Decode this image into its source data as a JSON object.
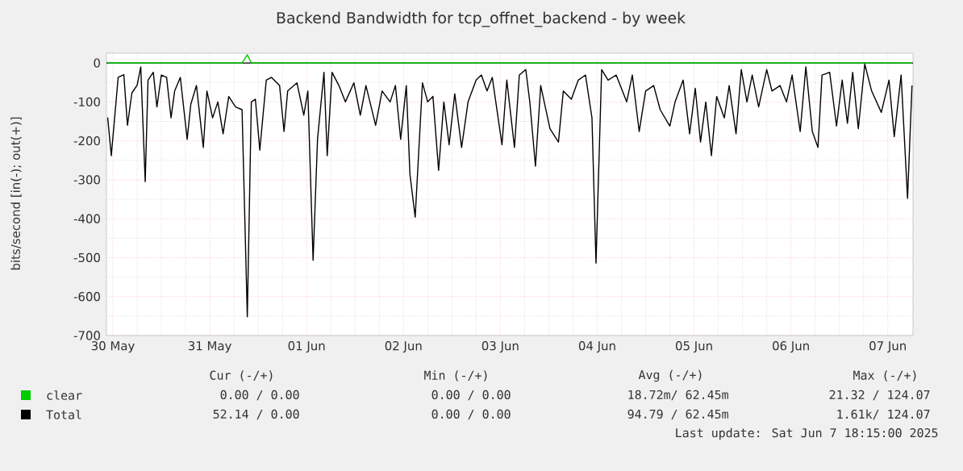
{
  "chart_data": {
    "type": "line",
    "title": "Backend Bandwidth for tcp_offnet_backend - by week",
    "ylabel": "bits/second [in(-); out(+)]",
    "xlim": [
      "2025-05-30T10:24",
      "2025-06-07T18:15"
    ],
    "ylim": [
      -700,
      25
    ],
    "xticks": [
      {
        "value": "2025-05-30T12:00",
        "label": "30 May"
      },
      {
        "value": "2025-05-31T12:00",
        "label": "31 May"
      },
      {
        "value": "2025-06-01T12:00",
        "label": "01 Jun"
      },
      {
        "value": "2025-06-02T12:00",
        "label": "02 Jun"
      },
      {
        "value": "2025-06-03T12:00",
        "label": "03 Jun"
      },
      {
        "value": "2025-06-04T12:00",
        "label": "04 Jun"
      },
      {
        "value": "2025-06-05T12:00",
        "label": "05 Jun"
      },
      {
        "value": "2025-06-06T12:00",
        "label": "06 Jun"
      },
      {
        "value": "2025-06-07T12:00",
        "label": "07 Jun"
      }
    ],
    "yticks": [
      -700,
      -600,
      -500,
      -400,
      -300,
      -200,
      -100,
      0
    ],
    "grid": true,
    "legend": "bottom",
    "ref_lines": [
      {
        "axis": "y",
        "value": 0,
        "color": "#000000"
      }
    ],
    "series": [
      {
        "name": "clear",
        "color": "#00cc00",
        "x": [
          "2025-05-30T10:42",
          "2025-05-31T20:00",
          "2025-05-31T21:18",
          "2025-05-31T22:18",
          "2025-06-07T18:00"
        ],
        "values": [
          0,
          0,
          21,
          0,
          0
        ]
      },
      {
        "name": "Total",
        "color": "#000000",
        "x": [
          "2025-05-30T10:42",
          "2025-05-30T11:36",
          "2025-05-30T13:18",
          "2025-05-30T14:42",
          "2025-05-30T15:36",
          "2025-05-30T16:42",
          "2025-05-30T18:00",
          "2025-05-30T18:54",
          "2025-05-30T20:00",
          "2025-05-30T20:42",
          "2025-05-30T22:00",
          "2025-05-30T22:54",
          "2025-05-31T00:00",
          "2025-05-31T01:18",
          "2025-05-31T02:24",
          "2025-05-31T03:18",
          "2025-05-31T04:42",
          "2025-05-31T06:24",
          "2025-05-31T07:18",
          "2025-05-31T08:42",
          "2025-05-31T10:24",
          "2025-05-31T11:18",
          "2025-05-31T12:42",
          "2025-05-31T14:00",
          "2025-05-31T15:18",
          "2025-05-31T16:42",
          "2025-05-31T18:24",
          "2025-05-31T20:00",
          "2025-05-31T21:18",
          "2025-05-31T22:18",
          "2025-05-31T23:18",
          "2025-06-01T00:24",
          "2025-06-01T02:00",
          "2025-06-01T03:18",
          "2025-06-01T05:18",
          "2025-06-01T06:24",
          "2025-06-01T07:18",
          "2025-06-01T09:36",
          "2025-06-01T11:18",
          "2025-06-01T12:18",
          "2025-06-01T13:36",
          "2025-06-01T14:42",
          "2025-06-01T16:18",
          "2025-06-01T17:06",
          "2025-06-01T18:18",
          "2025-06-01T20:00",
          "2025-06-01T21:36",
          "2025-06-01T23:42",
          "2025-06-02T01:18",
          "2025-06-02T02:42",
          "2025-06-02T05:06",
          "2025-06-02T06:42",
          "2025-06-02T08:42",
          "2025-06-02T10:00",
          "2025-06-02T11:18",
          "2025-06-02T12:42",
          "2025-06-02T13:36",
          "2025-06-02T14:54",
          "2025-06-02T16:42",
          "2025-06-02T18:00",
          "2025-06-02T19:18",
          "2025-06-02T20:42",
          "2025-06-02T22:00",
          "2025-06-02T23:18",
          "2025-06-03T00:42",
          "2025-06-03T02:24",
          "2025-06-03T04:00",
          "2025-06-03T06:00",
          "2025-06-03T07:18",
          "2025-06-03T08:42",
          "2025-06-03T10:00",
          "2025-06-03T12:24",
          "2025-06-03T13:36",
          "2025-06-03T15:30",
          "2025-06-03T16:42",
          "2025-06-03T18:18",
          "2025-06-03T19:18",
          "2025-06-03T20:42",
          "2025-06-03T22:00",
          "2025-06-04T00:18",
          "2025-06-04T02:24",
          "2025-06-04T03:36",
          "2025-06-04T05:36",
          "2025-06-04T07:18",
          "2025-06-04T09:06",
          "2025-06-04T10:42",
          "2025-06-04T11:42",
          "2025-06-04T13:06",
          "2025-06-04T14:42",
          "2025-06-04T16:42",
          "2025-06-04T19:18",
          "2025-06-04T20:42",
          "2025-06-04T22:24",
          "2025-06-05T00:00",
          "2025-06-05T02:00",
          "2025-06-05T03:36",
          "2025-06-05T06:00",
          "2025-06-05T07:18",
          "2025-06-05T09:18",
          "2025-06-05T10:54",
          "2025-06-05T12:18",
          "2025-06-05T13:36",
          "2025-06-05T14:54",
          "2025-06-05T16:18",
          "2025-06-05T17:36",
          "2025-06-05T19:30",
          "2025-06-05T20:42",
          "2025-06-05T22:24",
          "2025-06-05T23:42",
          "2025-06-06T01:06",
          "2025-06-06T02:24",
          "2025-06-06T04:00",
          "2025-06-06T06:00",
          "2025-06-06T07:18",
          "2025-06-06T09:18",
          "2025-06-06T10:54",
          "2025-06-06T12:18",
          "2025-06-06T14:18",
          "2025-06-06T15:42",
          "2025-06-06T17:18",
          "2025-06-06T18:42",
          "2025-06-06T19:42",
          "2025-06-06T21:36",
          "2025-06-06T23:18",
          "2025-06-07T00:42",
          "2025-06-07T02:00",
          "2025-06-07T03:18",
          "2025-06-07T04:42",
          "2025-06-07T06:18",
          "2025-06-07T08:00",
          "2025-06-07T10:24",
          "2025-06-07T12:18",
          "2025-06-07T13:36",
          "2025-06-07T15:18",
          "2025-06-07T16:54",
          "2025-06-07T18:00"
        ],
        "values": [
          -140,
          -238,
          -37,
          -30,
          -160,
          -77,
          -57,
          -10,
          -305,
          -44,
          -24,
          -113,
          -31,
          -37,
          -141,
          -72,
          -37,
          -196,
          -106,
          -58,
          -217,
          -72,
          -141,
          -100,
          -182,
          -86,
          -113,
          -120,
          -652,
          -100,
          -93,
          -224,
          -44,
          -37,
          -58,
          -176,
          -72,
          -51,
          -134,
          -72,
          -507,
          -196,
          -24,
          -238,
          -24,
          -58,
          -100,
          -51,
          -134,
          -58,
          -160,
          -72,
          -100,
          -58,
          -196,
          -58,
          -286,
          -396,
          -51,
          -100,
          -86,
          -276,
          -100,
          -210,
          -79,
          -217,
          -100,
          -44,
          -31,
          -72,
          -37,
          -210,
          -44,
          -217,
          -31,
          -17,
          -100,
          -265,
          -58,
          -169,
          -203,
          -72,
          -93,
          -44,
          -31,
          -141,
          -514,
          -17,
          -44,
          -31,
          -100,
          -31,
          -176,
          -72,
          -58,
          -120,
          -162,
          -100,
          -44,
          -182,
          -65,
          -203,
          -100,
          -238,
          -86,
          -141,
          -58,
          -182,
          -17,
          -100,
          -31,
          -113,
          -17,
          -72,
          -58,
          -100,
          -31,
          -176,
          -10,
          -176,
          -217,
          -31,
          -24,
          -162,
          -44,
          -155,
          -24,
          -169,
          -3,
          -72,
          -127,
          -44,
          -189,
          -31,
          -348,
          -58
        ]
      }
    ],
    "annotations": [
      "Cur (-/+)",
      "Min (-/+)",
      "Avg (-/+)",
      "Max (-/+)",
      "0.00 / 0.00",
      "0.00 / 0.00",
      "18.72m/ 62.45m",
      "21.32 / 124.07",
      "52.14 / 0.00",
      "0.00 / 0.00",
      "94.79 / 62.45m",
      "1.61k/ 124.07",
      "Last update: Sat Jun 7 18:15:00 2025"
    ]
  }
}
